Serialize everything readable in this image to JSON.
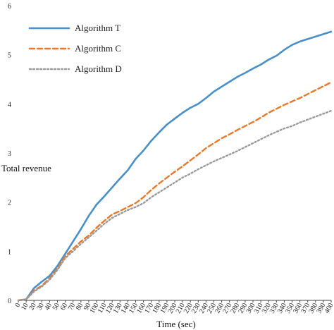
{
  "chart_data": {
    "type": "line",
    "xlabel": "Time (sec)",
    "ylabel": "Total revenue",
    "xlim": [
      0,
      400
    ],
    "ylim": [
      0,
      6
    ],
    "x_ticks": [
      "0",
      "10",
      "20",
      "30",
      "40",
      "50",
      "60",
      "70",
      "80",
      "90",
      "100",
      "110",
      "120",
      "130",
      "140",
      "150",
      "160",
      "170",
      "180",
      "190",
      "200",
      "210",
      "220",
      "230",
      "240",
      "250",
      "260",
      "270",
      "280",
      "290",
      "300",
      "310",
      "320",
      "330",
      "340",
      "350",
      "360",
      "370",
      "380",
      "390",
      "400"
    ],
    "y_ticks": [
      "0",
      "1",
      "2",
      "3",
      "4",
      "5",
      "6"
    ],
    "grid": false,
    "legend_position": "top-left",
    "x": [
      0,
      10,
      20,
      30,
      40,
      50,
      60,
      70,
      80,
      90,
      100,
      110,
      120,
      130,
      140,
      150,
      160,
      170,
      180,
      190,
      200,
      210,
      220,
      230,
      240,
      250,
      260,
      270,
      280,
      290,
      300,
      310,
      320,
      330,
      340,
      350,
      360,
      370,
      380,
      390,
      400
    ],
    "series": [
      {
        "name": "Algorithm T",
        "color": "#4a90c8",
        "style": "solid",
        "values": [
          0,
          0.02,
          0.25,
          0.38,
          0.5,
          0.7,
          0.95,
          1.2,
          1.45,
          1.72,
          1.95,
          2.12,
          2.3,
          2.48,
          2.65,
          2.88,
          3.05,
          3.25,
          3.42,
          3.58,
          3.7,
          3.82,
          3.92,
          4.0,
          4.12,
          4.25,
          4.35,
          4.45,
          4.55,
          4.63,
          4.72,
          4.8,
          4.9,
          4.98,
          5.1,
          5.2,
          5.27,
          5.32,
          5.37,
          5.42,
          5.47
        ]
      },
      {
        "name": "Algorithm C",
        "color": "#e8792a",
        "style": "dashed",
        "values": [
          0,
          0.02,
          0.2,
          0.3,
          0.45,
          0.65,
          0.9,
          1.05,
          1.2,
          1.32,
          1.48,
          1.62,
          1.75,
          1.82,
          1.9,
          1.98,
          2.1,
          2.25,
          2.38,
          2.5,
          2.62,
          2.73,
          2.85,
          2.97,
          3.1,
          3.2,
          3.3,
          3.38,
          3.47,
          3.55,
          3.63,
          3.72,
          3.82,
          3.9,
          3.98,
          4.05,
          4.12,
          4.2,
          4.28,
          4.36,
          4.44
        ]
      },
      {
        "name": "Algorithm D",
        "color": "#9a9a9a",
        "style": "dotted",
        "values": [
          0,
          0.02,
          0.18,
          0.28,
          0.42,
          0.62,
          0.86,
          1.0,
          1.15,
          1.28,
          1.42,
          1.56,
          1.68,
          1.76,
          1.84,
          1.9,
          1.98,
          2.1,
          2.2,
          2.3,
          2.4,
          2.5,
          2.58,
          2.67,
          2.75,
          2.83,
          2.9,
          2.97,
          3.04,
          3.12,
          3.2,
          3.28,
          3.36,
          3.43,
          3.5,
          3.55,
          3.62,
          3.68,
          3.74,
          3.8,
          3.86
        ]
      }
    ]
  }
}
